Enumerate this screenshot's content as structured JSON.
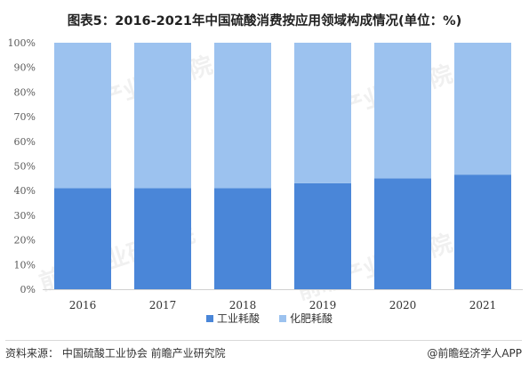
{
  "title": "图表5：2016-2021年中国硫酸消费按应用领域构成情况(单位：%)",
  "footer": {
    "source": "资料来源：  中国硫酸工业协会 前瞻产业研究院",
    "credit": "@前瞻经济学人APP"
  },
  "watermark": "前瞻产业研究院",
  "chart_data": {
    "type": "bar",
    "stacked": true,
    "categories": [
      "2016",
      "2017",
      "2018",
      "2019",
      "2020",
      "2021"
    ],
    "series": [
      {
        "name": "工业耗酸",
        "values": [
          41,
          41,
          41,
          43,
          45,
          46.5
        ],
        "color": "#4a86d8"
      },
      {
        "name": "化肥耗酸",
        "values": [
          59,
          59,
          59,
          57,
          55,
          53.5
        ],
        "color": "#9cc2ef"
      }
    ],
    "ylim": [
      0,
      100
    ],
    "yticks": [
      "0%",
      "10%",
      "20%",
      "30%",
      "40%",
      "50%",
      "60%",
      "70%",
      "80%",
      "90%",
      "100%"
    ],
    "legend_position": "bottom",
    "grid": false
  }
}
